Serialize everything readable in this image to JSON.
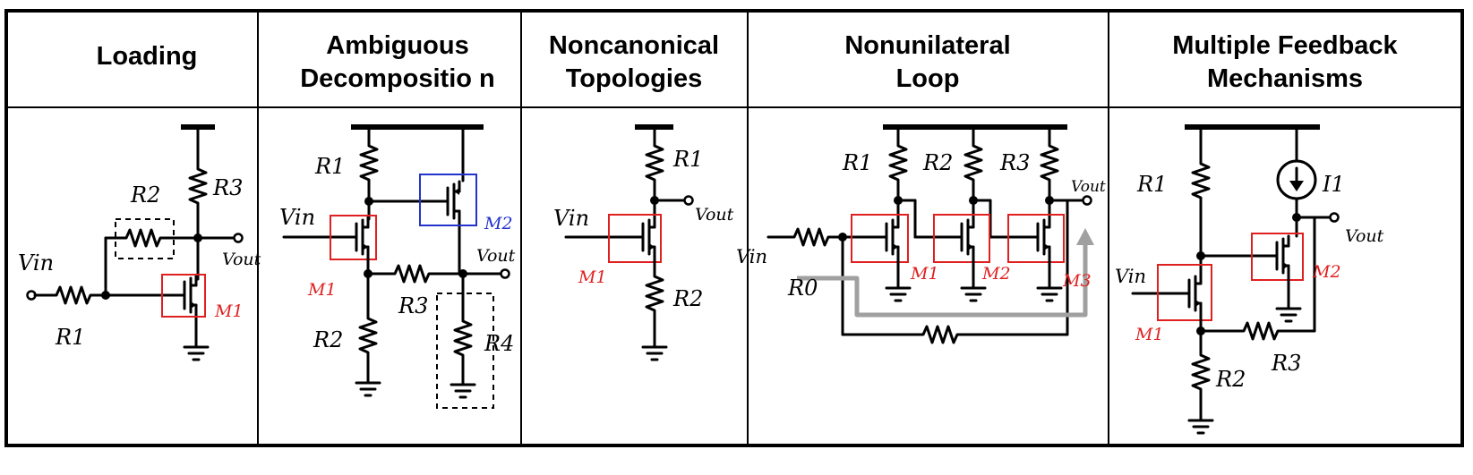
{
  "columns": [
    {
      "id": "loading",
      "title_lines": [
        "Loading"
      ]
    },
    {
      "id": "ambiguous",
      "title_lines": [
        "Ambiguous",
        "Decompositio n"
      ]
    },
    {
      "id": "noncanonical",
      "title_lines": [
        "Noncanonical",
        "Topologies"
      ]
    },
    {
      "id": "nonunilateral",
      "title_lines": [
        "Nonunilateral",
        "Loop"
      ]
    },
    {
      "id": "multiple",
      "title_lines": [
        "Multiple Feedback",
        "Mechanisms"
      ]
    }
  ],
  "labels": {
    "c1": {
      "vin": "Vin",
      "r1": "R1",
      "r2": "R2",
      "r3": "R3",
      "vout": "Vout",
      "m1": "M1"
    },
    "c2": {
      "vin": "Vin",
      "r1": "R1",
      "r2": "R2",
      "r3": "R3",
      "r4": "R4",
      "vout": "Vout",
      "m1": "M1",
      "m2": "M2"
    },
    "c3": {
      "vin": "Vin",
      "r1": "R1",
      "r2": "R2",
      "vout": "Vout",
      "m1": "M1"
    },
    "c4": {
      "vin": "Vin",
      "r0": "R0",
      "r1": "R1",
      "r2": "R2",
      "r3": "R3",
      "vout": "Vout",
      "m1": "M1",
      "m2": "M2",
      "m3": "M3"
    },
    "c5": {
      "vin": "Vin",
      "r1": "R1",
      "r2": "R2",
      "r3": "R3",
      "i1": "I1",
      "vout": "Vout",
      "m1": "M1",
      "m2": "M2"
    }
  },
  "colors": {
    "highlight_red": "#e02020",
    "highlight_blue": "#2233cc",
    "arrow_gray": "#a0a0a0"
  }
}
